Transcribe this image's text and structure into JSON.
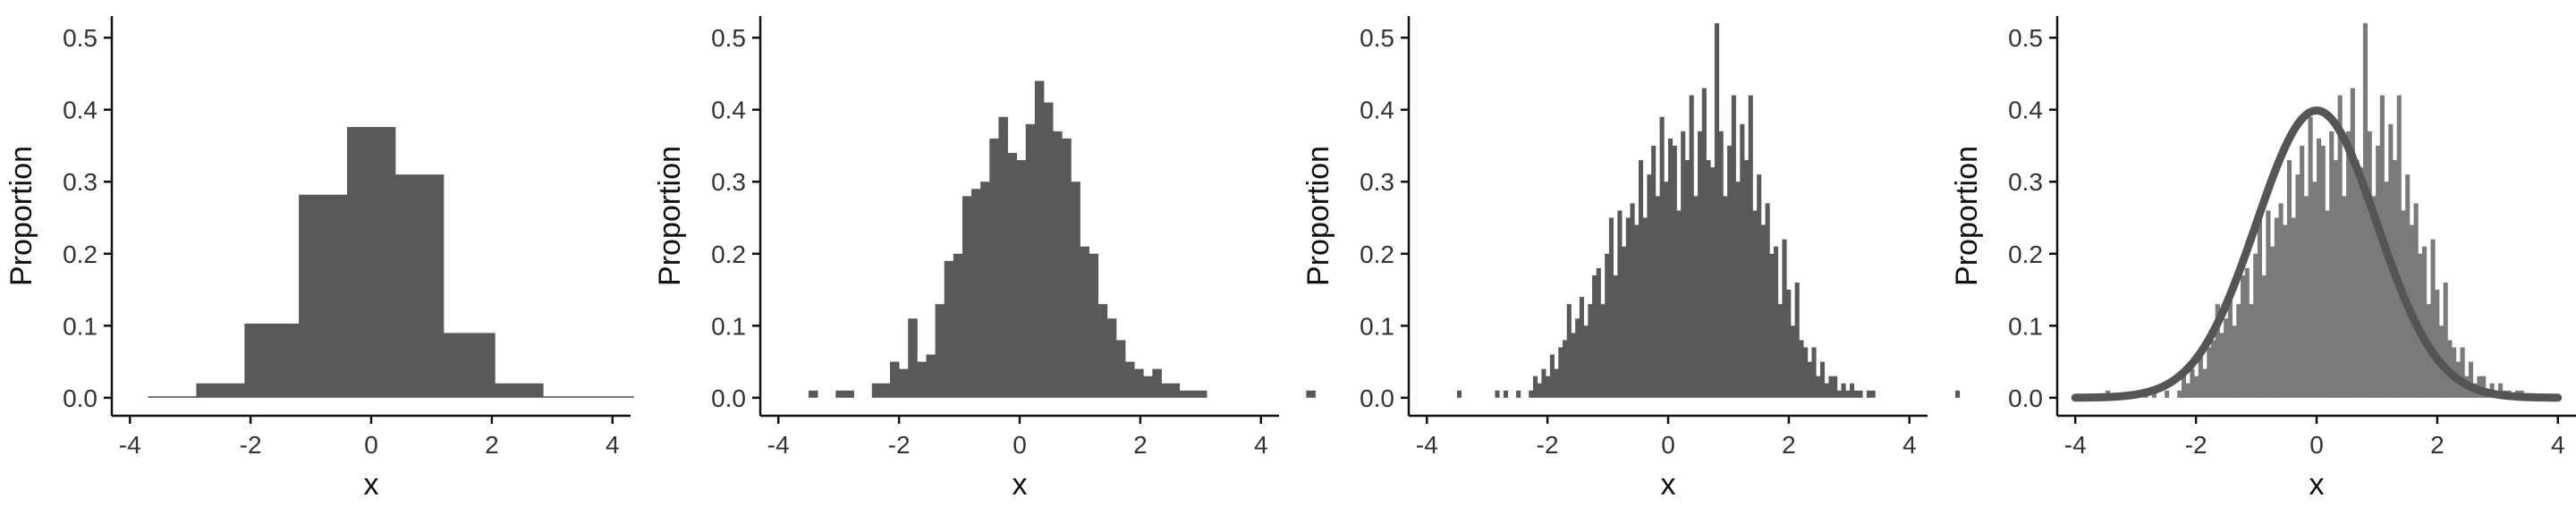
{
  "chart_data": [
    {
      "type": "bar",
      "xlabel": "x",
      "ylabel": "Proportion",
      "xlim": [
        -4.3,
        4.3
      ],
      "ylim": [
        -0.025,
        0.53
      ],
      "xticks": [
        "-4",
        "-2",
        "0",
        "2",
        "4"
      ],
      "yticks": [
        "0.0",
        "0.1",
        "0.2",
        "0.3",
        "0.4",
        "0.5"
      ],
      "grid": false,
      "bar_color": "#595959",
      "bins": [
        {
          "x0": -3.7,
          "x1": -2.9,
          "value": 0.002
        },
        {
          "x0": -2.9,
          "x1": -2.1,
          "value": 0.02
        },
        {
          "x0": -2.1,
          "x1": -1.2,
          "value": 0.103
        },
        {
          "x0": -1.2,
          "x1": -0.4,
          "value": 0.282
        },
        {
          "x0": -0.4,
          "x1": 0.4,
          "value": 0.376
        },
        {
          "x0": 0.4,
          "x1": 1.2,
          "value": 0.31
        },
        {
          "x0": 1.2,
          "x1": 2.05,
          "value": 0.09
        },
        {
          "x0": 2.05,
          "x1": 2.85,
          "value": 0.02
        },
        {
          "x0": 2.85,
          "x1": 4.35,
          "value": 0.002
        }
      ]
    },
    {
      "type": "bar",
      "xlabel": "x",
      "ylabel": "Proportion",
      "xlim": [
        -4.3,
        4.3
      ],
      "ylim": [
        -0.025,
        0.53
      ],
      "xticks": [
        "-4",
        "-2",
        "0",
        "2",
        "4"
      ],
      "yticks": [
        "0.0",
        "0.1",
        "0.2",
        "0.3",
        "0.4",
        "0.5"
      ],
      "grid": false,
      "bar_color": "#595959",
      "bin_start": -3.5,
      "bin_width": 0.15,
      "values": [
        0.01,
        0,
        0,
        0.01,
        0.01,
        0,
        0,
        0.02,
        0.02,
        0.05,
        0.04,
        0.11,
        0.05,
        0.06,
        0.13,
        0.19,
        0.2,
        0.28,
        0.29,
        0.3,
        0.36,
        0.39,
        0.34,
        0.33,
        0.38,
        0.44,
        0.41,
        0.37,
        0.36,
        0.3,
        0.21,
        0.2,
        0.13,
        0.11,
        0.08,
        0.05,
        0.04,
        0.03,
        0.04,
        0.02,
        0.02,
        0.01,
        0.01,
        0.01,
        0,
        0,
        0,
        0,
        0,
        0,
        0,
        0,
        0,
        0,
        0,
        0.01
      ]
    },
    {
      "type": "bar",
      "xlabel": "x",
      "ylabel": "Proportion",
      "xlim": [
        -4.3,
        4.3
      ],
      "ylim": [
        -0.025,
        0.53
      ],
      "xticks": [
        "-4",
        "-2",
        "0",
        "2",
        "4"
      ],
      "yticks": [
        "0.0",
        "0.1",
        "0.2",
        "0.3",
        "0.4",
        "0.5"
      ],
      "grid": false,
      "bar_color": "#595959",
      "bin_start": -3.5,
      "bin_width": 0.07,
      "values": [
        0.01,
        0,
        0,
        0,
        0,
        0,
        0,
        0,
        0,
        0.01,
        0,
        0.01,
        0,
        0,
        0.01,
        0,
        0,
        0.01,
        0.03,
        0.02,
        0.04,
        0.03,
        0.06,
        0.04,
        0.07,
        0.08,
        0.13,
        0.09,
        0.11,
        0.14,
        0.1,
        0.13,
        0.17,
        0.18,
        0.13,
        0.2,
        0.25,
        0.17,
        0.26,
        0.21,
        0.25,
        0.27,
        0.24,
        0.33,
        0.25,
        0.31,
        0.35,
        0.28,
        0.39,
        0.3,
        0.36,
        0.35,
        0.26,
        0.37,
        0.33,
        0.42,
        0.28,
        0.37,
        0.43,
        0.33,
        0.32,
        0.52,
        0.37,
        0.28,
        0.35,
        0.42,
        0.3,
        0.38,
        0.33,
        0.42,
        0.26,
        0.31,
        0.24,
        0.27,
        0.2,
        0.21,
        0.13,
        0.22,
        0.15,
        0.1,
        0.16,
        0.08,
        0.07,
        0.05,
        0.07,
        0.03,
        0.05,
        0.02,
        0.03,
        0.03,
        0.01,
        0.02,
        0.01,
        0.02,
        0.01,
        0.01,
        0,
        0.01,
        0.01,
        0,
        0,
        0,
        0,
        0,
        0,
        0,
        0,
        0,
        0,
        0,
        0,
        0,
        0,
        0,
        0,
        0,
        0,
        0,
        0.01
      ]
    },
    {
      "type": "bar",
      "xlabel": "x",
      "ylabel": "Proportion",
      "xlim": [
        -4.3,
        4.3
      ],
      "ylim": [
        -0.025,
        0.53
      ],
      "xticks": [
        "-4",
        "-2",
        "0",
        "2",
        "4"
      ],
      "yticks": [
        "0.0",
        "0.1",
        "0.2",
        "0.3",
        "0.4",
        "0.5"
      ],
      "grid": false,
      "bar_color": "#7a7a7a",
      "bin_start": -3.5,
      "bin_width": 0.07,
      "values": [
        0.01,
        0,
        0,
        0,
        0,
        0,
        0,
        0,
        0,
        0.01,
        0,
        0.01,
        0,
        0,
        0.01,
        0,
        0,
        0.01,
        0.03,
        0.02,
        0.04,
        0.03,
        0.06,
        0.04,
        0.07,
        0.08,
        0.13,
        0.09,
        0.11,
        0.14,
        0.1,
        0.13,
        0.17,
        0.18,
        0.13,
        0.2,
        0.25,
        0.17,
        0.26,
        0.21,
        0.25,
        0.27,
        0.24,
        0.33,
        0.25,
        0.31,
        0.35,
        0.28,
        0.39,
        0.3,
        0.36,
        0.35,
        0.26,
        0.37,
        0.33,
        0.42,
        0.28,
        0.37,
        0.43,
        0.33,
        0.32,
        0.52,
        0.37,
        0.28,
        0.35,
        0.42,
        0.3,
        0.38,
        0.33,
        0.42,
        0.26,
        0.31,
        0.24,
        0.27,
        0.2,
        0.21,
        0.13,
        0.22,
        0.15,
        0.1,
        0.16,
        0.08,
        0.07,
        0.05,
        0.07,
        0.03,
        0.05,
        0.02,
        0.03,
        0.03,
        0.01,
        0.02,
        0.01,
        0.02,
        0.01,
        0.01,
        0,
        0.01,
        0.01,
        0,
        0,
        0,
        0,
        0,
        0,
        0,
        0,
        0,
        0,
        0,
        0,
        0,
        0,
        0,
        0,
        0,
        0,
        0,
        0.01
      ],
      "overlay": {
        "type": "line",
        "distribution": "normal",
        "mean": 0,
        "sd": 1,
        "x_range": [
          -4,
          4
        ],
        "color": "#555555"
      }
    }
  ]
}
